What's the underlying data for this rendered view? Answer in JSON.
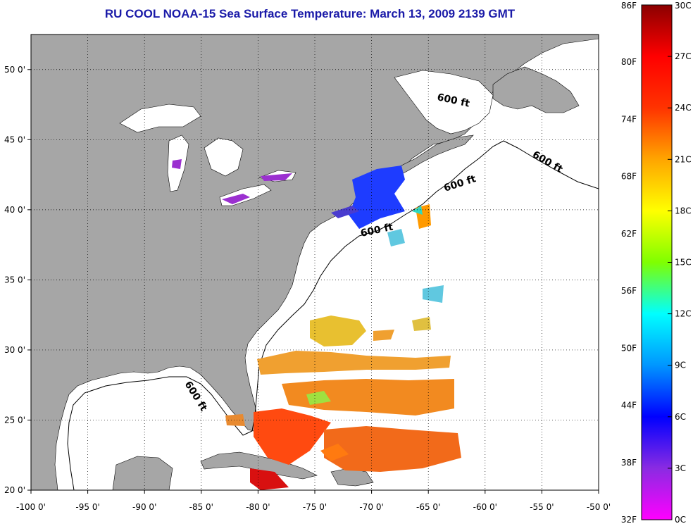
{
  "title": "RU COOL  NOAA-15  Sea Surface Temperature:  March 13, 2009 2139 GMT",
  "colors": {
    "land": "#a6a6a6",
    "ocean": "#ffffff",
    "title": "#1a1aa8",
    "grid": "#000000"
  },
  "map": {
    "lon_range": [
      -100,
      -50
    ],
    "lat_range": [
      20,
      52.5
    ],
    "lon_ticks": [
      "-100 0'",
      "-95 0'",
      "-90 0'",
      "-85 0'",
      "-80 0'",
      "-75 0'",
      "-70 0'",
      "-65 0'",
      "-60 0'",
      "-55 0'",
      "-50 0'"
    ],
    "lat_ticks": [
      "50 0'",
      "45 0'",
      "40 0'",
      "35 0'",
      "30 0'",
      "25 0'",
      "20 0'"
    ],
    "contour_labels": [
      "600 ft",
      "600 ft",
      "600 ft",
      "600 ft",
      "600 ft"
    ]
  },
  "colorbar": {
    "left_labels": [
      "86F",
      "80F",
      "74F",
      "68F",
      "62F",
      "56F",
      "50F",
      "44F",
      "38F",
      "32F"
    ],
    "right_labels": [
      "30C",
      "27C",
      "24C",
      "21C",
      "18C",
      "15C",
      "12C",
      "9C",
      "6C",
      "3C",
      "0C"
    ],
    "stops": [
      "#ff00ff",
      "#8a2be2",
      "#0000ff",
      "#0096ff",
      "#00ffff",
      "#7fff00",
      "#ffff00",
      "#ffa500",
      "#ff3300",
      "#ff0000",
      "#8b0000"
    ]
  }
}
